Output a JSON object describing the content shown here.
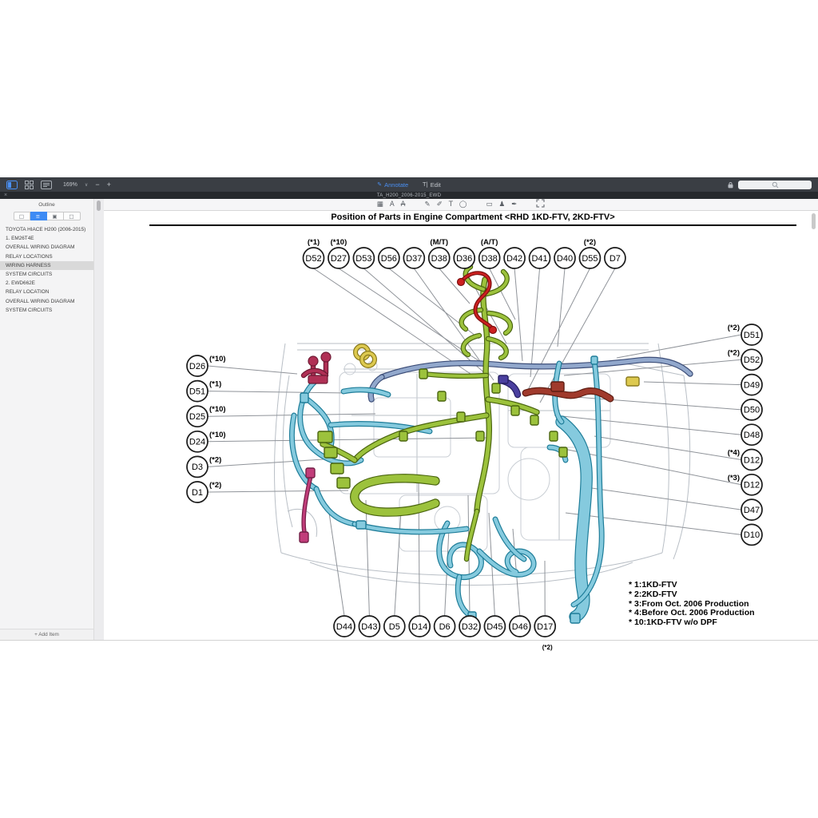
{
  "app": {
    "toolbar": {
      "zoom_level": "169%",
      "zoom_out_label": "−",
      "zoom_in_label": "+",
      "annotate_label": "Annotate",
      "edit_label": "Edit"
    },
    "tab_title": "TA_H200_2006-2015_EWD",
    "tab_close_label": "×",
    "sidebar": {
      "title": "Outline",
      "items": [
        {
          "label": "TOYOTA HIACE H200 (2006-2015)",
          "selected": false
        },
        {
          "label": "1. EM26T4E",
          "selected": false
        },
        {
          "label": "OVERALL WIRING DIAGRAM",
          "selected": false
        },
        {
          "label": "RELAY LOCATIONS",
          "selected": false
        },
        {
          "label": "WIRING HARNESS",
          "selected": true
        },
        {
          "label": "SYSTEM CIRCUITS",
          "selected": false
        },
        {
          "label": "2. EWD662E",
          "selected": false
        },
        {
          "label": "RELAY LOCATION",
          "selected": false
        },
        {
          "label": "OVERALL WIRING DIAGRAM",
          "selected": false
        },
        {
          "label": "SYSTEM CIRCUITS",
          "selected": false
        }
      ],
      "add_item_label": "+ Add Item"
    }
  },
  "document": {
    "title": "Position of Parts in Engine Compartment <RHD 1KD-FTV, 2KD-FTV>",
    "legend": [
      "* 1:1KD-FTV",
      "* 2:2KD-FTV",
      "* 3:From Oct. 2006 Production",
      "* 4:Before Oct. 2006 Production",
      "* 10:1KD-FTV w/o DPF"
    ],
    "labels": {
      "top": [
        {
          "label": "D52",
          "note": "(*1)"
        },
        {
          "label": "D27",
          "note": "(*10)"
        },
        {
          "label": "D53"
        },
        {
          "label": "D56"
        },
        {
          "label": "D37"
        },
        {
          "label": "D38",
          "note": "(M/T)"
        },
        {
          "label": "D36"
        },
        {
          "label": "D38",
          "note": "(A/T)"
        },
        {
          "label": "D42"
        },
        {
          "label": "D41"
        },
        {
          "label": "D40"
        },
        {
          "label": "D55",
          "note": "(*2)"
        },
        {
          "label": "D7"
        }
      ],
      "left": [
        {
          "label": "D26",
          "note": "(*10)"
        },
        {
          "label": "D51",
          "note": "(*1)"
        },
        {
          "label": "D25",
          "note": "(*10)"
        },
        {
          "label": "D24",
          "note": "(*10)"
        },
        {
          "label": "D3",
          "note": "(*2)"
        },
        {
          "label": "D1",
          "note": "(*2)"
        }
      ],
      "right": [
        {
          "label": "D51",
          "note": "(*2)"
        },
        {
          "label": "D52",
          "note": "(*2)"
        },
        {
          "label": "D49"
        },
        {
          "label": "D50"
        },
        {
          "label": "D48"
        },
        {
          "label": "D12",
          "note": "(*4)"
        },
        {
          "label": "D12",
          "note": "(*3)"
        },
        {
          "label": "D47"
        },
        {
          "label": "D10"
        }
      ],
      "bottom": [
        {
          "label": "D44"
        },
        {
          "label": "D43"
        },
        {
          "label": "D5"
        },
        {
          "label": "D14"
        },
        {
          "label": "D6"
        },
        {
          "label": "D32"
        },
        {
          "label": "D45"
        },
        {
          "label": "D46"
        },
        {
          "label": "D17",
          "note": "(*2)"
        }
      ]
    },
    "colors": {
      "green": "#9cc23c",
      "green_dark": "#4a650f",
      "cyan": "#85cade",
      "cyan_dark": "#1e7d99",
      "steel": "#92a8cc",
      "steel_dark": "#3d4e78",
      "red": "#cc2020",
      "red_dark": "#7d1010",
      "maroon": "#a03a2c",
      "maroon_dark": "#5e1d12",
      "navy": "#4a3f9f",
      "navy_dark": "#272064",
      "crimson": "#b03055",
      "crimson_dark": "#6e1b34",
      "magenta": "#c13d7a",
      "magenta_dark": "#731f46",
      "yellow": "#ddc94f",
      "yellow_dark": "#8a7a1e",
      "sketch": "#b9bfc6",
      "leader": "#8f9399",
      "accent_blue": "#4a90f4"
    }
  }
}
